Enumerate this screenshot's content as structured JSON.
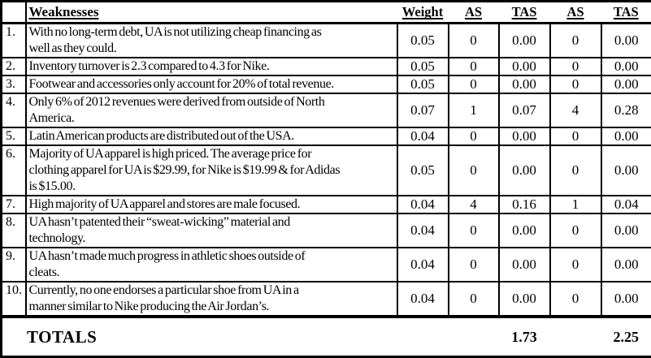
{
  "colors": {
    "background": "#ffffff",
    "text": "#000000",
    "border": "#000000"
  },
  "table": {
    "columns": {
      "weaknesses": "Weaknesses",
      "weight": "Weight",
      "as1": "AS",
      "tas1": "TAS",
      "as2": "AS",
      "tas2": "TAS"
    },
    "rows": [
      {
        "num": "1.",
        "text": "With no long-term debt, UA is not utilizing cheap financing as\nwell as they could.",
        "weight": "0.05",
        "as1": "0",
        "tas1": "0.00",
        "as2": "0",
        "tas2": "0.00"
      },
      {
        "num": "2.",
        "text": "Inventory turnover is 2.3 compared to 4.3 for Nike.",
        "weight": "0.05",
        "as1": "0",
        "tas1": "0.00",
        "as2": "0",
        "tas2": "0.00"
      },
      {
        "num": "3.",
        "text": "Footwear and accessories only account for 20% of total revenue.",
        "weight": "0.05",
        "as1": "0",
        "tas1": "0.00",
        "as2": "0",
        "tas2": "0.00"
      },
      {
        "num": "4.",
        "text": "Only 6% of 2012 revenues were derived from outside of North\nAmerica.",
        "weight": "0.07",
        "as1": "1",
        "tas1": "0.07",
        "as2": "4",
        "tas2": "0.28"
      },
      {
        "num": "5.",
        "text": "Latin American products are distributed out of the USA.",
        "weight": "0.04",
        "as1": "0",
        "tas1": "0.00",
        "as2": "0",
        "tas2": "0.00"
      },
      {
        "num": "6.",
        "text": "Majority of UA apparel is high priced. The average price for\nclothing apparel for UA is $29.99, for Nike is $19.99 & for Adidas\nis $15.00.",
        "weight": "0.05",
        "as1": "0",
        "tas1": "0.00",
        "as2": "0",
        "tas2": "0.00"
      },
      {
        "num": "7.",
        "text": "High majority of UA apparel and stores are male focused.",
        "weight": "0.04",
        "as1": "4",
        "tas1": "0.16",
        "as2": "1",
        "tas2": "0.04"
      },
      {
        "num": "8.",
        "text": "UA hasn’t patented their “sweat-wicking” material and\ntechnology.",
        "weight": "0.04",
        "as1": "0",
        "tas1": "0.00",
        "as2": "0",
        "tas2": "0.00"
      },
      {
        "num": "9.",
        "text": "UA hasn’t made much progress in athletic shoes outside of\ncleats.",
        "weight": "0.04",
        "as1": "0",
        "tas1": "0.00",
        "as2": "0",
        "tas2": "0.00"
      },
      {
        "num": "10.",
        "text": "Currently, no one endorses a particular shoe from UA in a\nmanner similar to Nike producing the Air Jordan’s.",
        "weight": "0.04",
        "as1": "0",
        "tas1": "0.00",
        "as2": "0",
        "tas2": "0.00"
      }
    ],
    "totals": {
      "label": "TOTALS",
      "weight": "",
      "as1": "",
      "tas1": "1.73",
      "as2": "",
      "tas2": "2.25"
    }
  }
}
